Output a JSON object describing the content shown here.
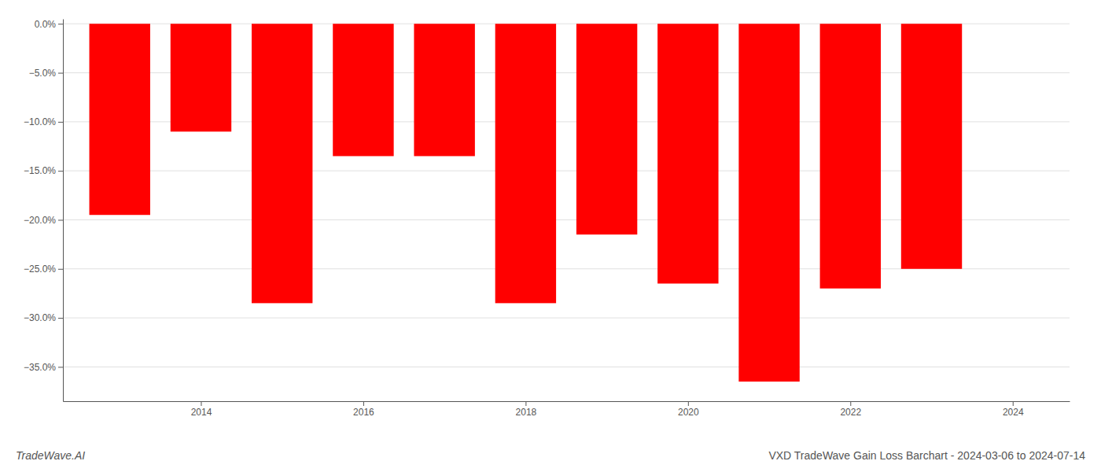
{
  "chart_data": {
    "type": "bar",
    "title": "VXD TradeWave Gain Loss Barchart - 2024-03-06 to 2024-07-14",
    "annotations": [
      "TradeWave.AI"
    ],
    "x": [
      2013,
      2014,
      2015,
      2016,
      2017,
      2018,
      2019,
      2020,
      2021,
      2022,
      2023
    ],
    "values": [
      -0.195,
      -0.11,
      -0.285,
      -0.135,
      -0.135,
      -0.285,
      -0.215,
      -0.265,
      -0.365,
      -0.27,
      -0.25
    ],
    "color": "#ff0000",
    "xlim": [
      2012.3,
      2024.7
    ],
    "xticks": [
      2014,
      2016,
      2018,
      2020,
      2022,
      2024
    ],
    "ylim": [
      -0.385,
      0.005
    ],
    "yticks": [
      {
        "value": 0.0,
        "label": "0.0%"
      },
      {
        "value": -0.05,
        "label": "−5.0%"
      },
      {
        "value": -0.1,
        "label": "−10.0%"
      },
      {
        "value": -0.15,
        "label": "−15.0%"
      },
      {
        "value": -0.2,
        "label": "−20.0%"
      },
      {
        "value": -0.25,
        "label": "−25.0%"
      },
      {
        "value": -0.3,
        "label": "−30.0%"
      },
      {
        "value": -0.35,
        "label": "−35.0%"
      }
    ],
    "grid": true
  }
}
